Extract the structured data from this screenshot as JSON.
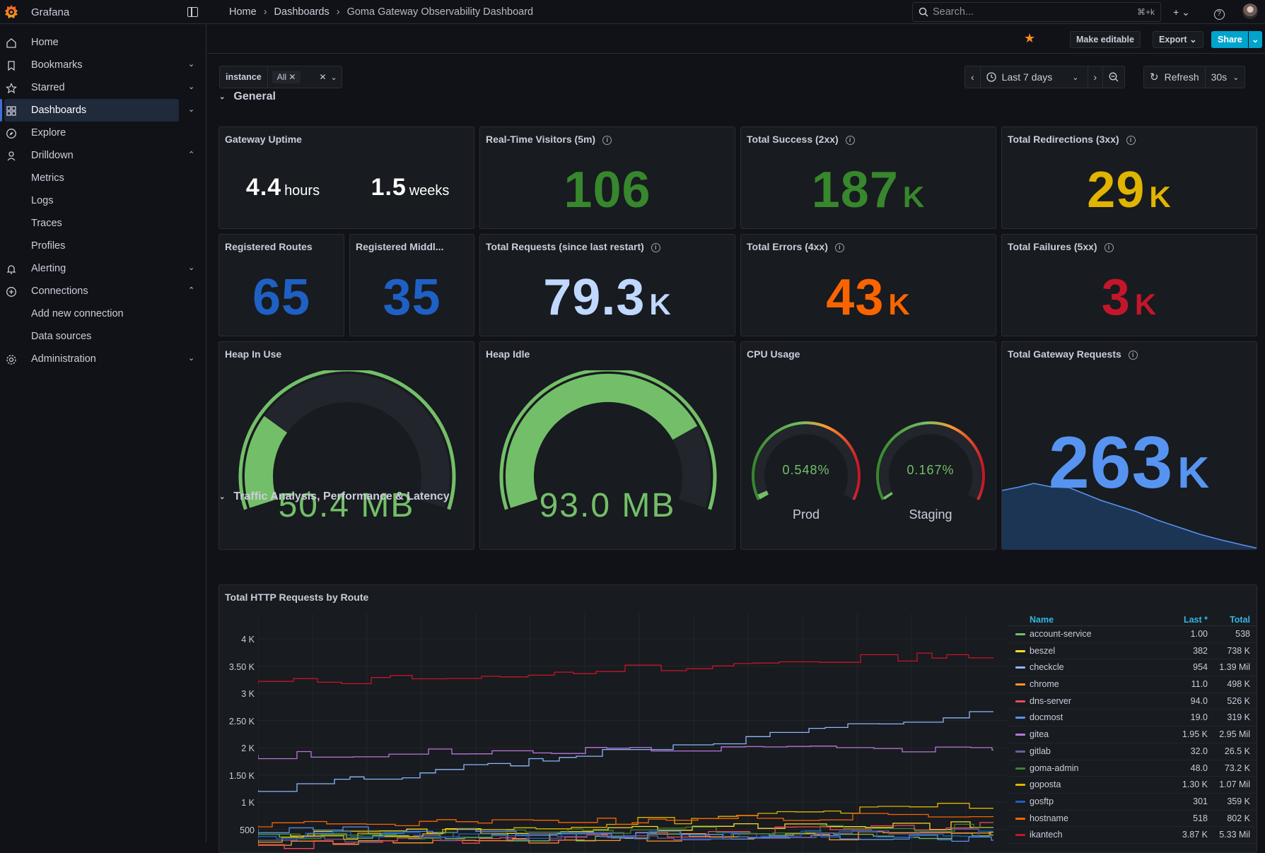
{
  "app": {
    "name": "Grafana"
  },
  "breadcrumb": [
    "Home",
    "Dashboards",
    "Goma Gateway Observability Dashboard"
  ],
  "search": {
    "placeholder": "Search...",
    "shortcut": "⌘+k"
  },
  "sidebar": {
    "items": [
      {
        "label": "Home",
        "icon": "home-icon"
      },
      {
        "label": "Bookmarks",
        "icon": "bookmark-icon"
      },
      {
        "label": "Starred",
        "icon": "star-icon"
      },
      {
        "label": "Dashboards",
        "icon": "dashboards-icon"
      },
      {
        "label": "Explore",
        "icon": "compass-icon"
      },
      {
        "label": "Drilldown",
        "icon": "drilldown-icon"
      },
      {
        "label": "Alerting",
        "icon": "bell-icon"
      },
      {
        "label": "Connections",
        "icon": "plug-icon"
      },
      {
        "label": "Administration",
        "icon": "gear-icon"
      }
    ],
    "drilldown_children": [
      "Metrics",
      "Logs",
      "Traces",
      "Profiles"
    ],
    "connections_children": [
      "Add new connection",
      "Data sources"
    ]
  },
  "toolbar": {
    "make_editable": "Make editable",
    "export": "Export",
    "share": "Share"
  },
  "variables": {
    "label": "instance",
    "value": "All"
  },
  "time": {
    "range": "Last 7 days",
    "refresh": "Refresh",
    "interval": "30s"
  },
  "rows": {
    "general": "General",
    "traffic": "Traffic Analysis, Performance & Latency"
  },
  "panels": {
    "uptime": {
      "title": "Gateway Uptime",
      "v1": "4.4",
      "u1": "hours",
      "v2": "1.5",
      "u2": "weeks"
    },
    "visitors": {
      "title": "Real-Time Visitors (5m)",
      "value": "106",
      "color": "#37872d"
    },
    "success": {
      "title": "Total Success (2xx)",
      "value": "187",
      "unit": "K",
      "color": "#37872d"
    },
    "redirects": {
      "title": "Total Redirections (3xx)",
      "value": "29",
      "unit": "K",
      "color": "#e0b400"
    },
    "routes": {
      "title": "Registered Routes",
      "value": "65",
      "color": "#1f60c4"
    },
    "middlewares": {
      "title": "Registered Middl...",
      "value": "35",
      "color": "#1f60c4"
    },
    "requests": {
      "title": "Total Requests (since last restart)",
      "value": "79.3",
      "unit": "K",
      "color": "#c0d8ff"
    },
    "errors": {
      "title": "Total Errors (4xx)",
      "value": "43",
      "unit": "K",
      "color": "#fa6400"
    },
    "failures": {
      "title": "Total Failures (5xx)",
      "value": "3",
      "unit": "K",
      "color": "#c4162a"
    },
    "heap_use": {
      "title": "Heap In Use",
      "value": "50.4 MB",
      "fill": 0.25
    },
    "heap_idle": {
      "title": "Heap Idle",
      "value": "93.0 MB",
      "fill": 0.78
    },
    "cpu": {
      "title": "CPU Usage",
      "prod_value": "0.548%",
      "prod_label": "Prod",
      "staging_value": "0.167%",
      "staging_label": "Staging"
    },
    "gateway": {
      "title": "Total Gateway Requests",
      "value": "263",
      "unit": "K",
      "color": "#5794f2"
    }
  },
  "http_chart": {
    "title": "Total HTTP Requests by Route",
    "legend_headers": {
      "name": "Name",
      "last": "Last *",
      "total": "Total"
    },
    "legend": [
      {
        "name": "account-service",
        "last": "1.00",
        "total": "538",
        "color": "#73bf69"
      },
      {
        "name": "beszel",
        "last": "382",
        "total": "738 K",
        "color": "#fade2a"
      },
      {
        "name": "checkcle",
        "last": "954",
        "total": "1.39 Mil",
        "color": "#8ab8ff"
      },
      {
        "name": "chrome",
        "last": "11.0",
        "total": "498 K",
        "color": "#ff9830"
      },
      {
        "name": "dns-server",
        "last": "94.0",
        "total": "526 K",
        "color": "#f2495c"
      },
      {
        "name": "docmost",
        "last": "19.0",
        "total": "319 K",
        "color": "#5794f2"
      },
      {
        "name": "gitea",
        "last": "1.95 K",
        "total": "2.95 Mil",
        "color": "#b877d9"
      },
      {
        "name": "gitlab",
        "last": "32.0",
        "total": "26.5 K",
        "color": "#705da0"
      },
      {
        "name": "goma-admin",
        "last": "48.0",
        "total": "73.2 K",
        "color": "#37872d"
      },
      {
        "name": "goposta",
        "last": "1.30 K",
        "total": "1.07 Mil",
        "color": "#e0b400"
      },
      {
        "name": "gosftp",
        "last": "301",
        "total": "359 K",
        "color": "#1f60c4"
      },
      {
        "name": "hostname",
        "last": "518",
        "total": "802 K",
        "color": "#fa6400"
      },
      {
        "name": "ikantech",
        "last": "3.87 K",
        "total": "5.33 Mil",
        "color": "#c4162a"
      }
    ],
    "y_ticks": [
      "4 K",
      "3.50 K",
      "3 K",
      "2.50 K",
      "2 K",
      "1.50 K",
      "1 K",
      "500"
    ]
  }
}
